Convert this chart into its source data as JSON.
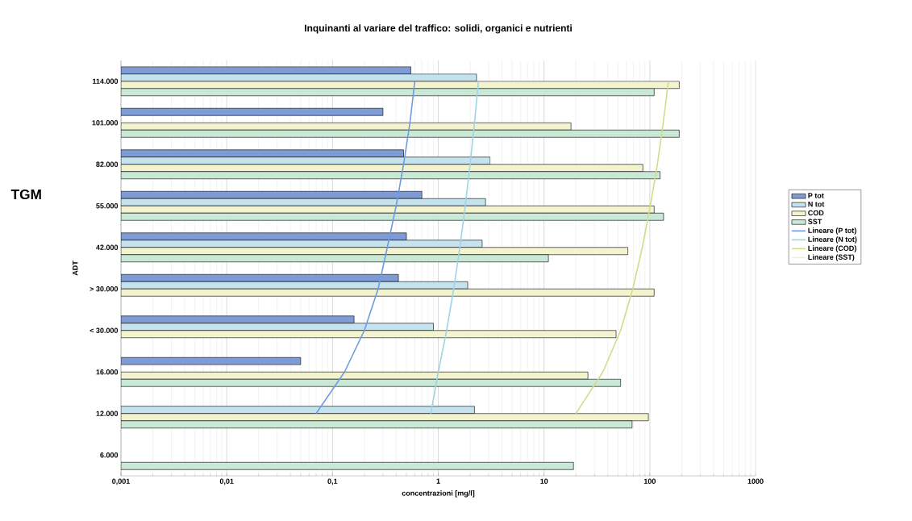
{
  "chart_data": {
    "type": "bar",
    "orientation": "horizontal",
    "title": "Inquinanti al variare del traffico: solidi, organici e nutrienti",
    "xlabel": "concentrazioni [mg/l]",
    "ylabel": "ADT",
    "annotations": [
      "TGM"
    ],
    "categories": [
      "114.000",
      "101.000",
      "82.000",
      "55.000",
      "42.000",
      "> 30.000",
      "< 30.000",
      "16.000",
      "12.000",
      "6.000"
    ],
    "series": [
      {
        "name": "P tot",
        "color": "#7f9bd6",
        "values": [
          0.55,
          0.3,
          0.47,
          0.7,
          0.5,
          0.42,
          0.16,
          0.05,
          null,
          null
        ]
      },
      {
        "name": "N tot",
        "color": "#c5e3ef",
        "values": [
          2.3,
          null,
          3.1,
          2.8,
          2.6,
          1.9,
          0.9,
          null,
          2.2,
          null
        ]
      },
      {
        "name": "COD",
        "color": "#f3f3d0",
        "values": [
          190,
          18,
          86,
          110,
          62,
          110,
          48,
          26,
          97,
          null
        ]
      },
      {
        "name": "SST",
        "color": "#c9e8d6",
        "values": [
          110,
          190,
          125,
          135,
          11,
          null,
          null,
          53,
          68,
          19
        ]
      },
      {
        "name": "Lineare (P tot)",
        "type": "line",
        "color": "#6f9be0",
        "values": [
          0.6,
          0.54,
          0.47,
          0.4,
          0.33,
          0.27,
          0.2,
          0.13,
          0.07,
          null
        ]
      },
      {
        "name": "Lineare (N tot)",
        "type": "line",
        "color": "#9fd3e6",
        "values": [
          2.4,
          2.2,
          2.0,
          1.8,
          1.6,
          1.4,
          1.2,
          1.0,
          0.85,
          null
        ]
      },
      {
        "name": "Lineare (COD)",
        "type": "line",
        "color": "#d2dc8c",
        "values": [
          150,
          134,
          118,
          101,
          85,
          69,
          53,
          36,
          20,
          null
        ]
      },
      {
        "name": "Lineare (SST)",
        "type": "line",
        "color": "#e6f2e6",
        "values": [
          null,
          null,
          null,
          null,
          null,
          null,
          null,
          null,
          null,
          null
        ]
      }
    ],
    "log": "x",
    "xlim": [
      0.001,
      1000
    ],
    "xticks": [
      {
        "value": 0.001,
        "label": "0,001"
      },
      {
        "value": 0.01,
        "label": "0,01"
      },
      {
        "value": 0.1,
        "label": "0,1"
      },
      1,
      10,
      100,
      1000
    ],
    "grid": "x",
    "legend": "right"
  }
}
